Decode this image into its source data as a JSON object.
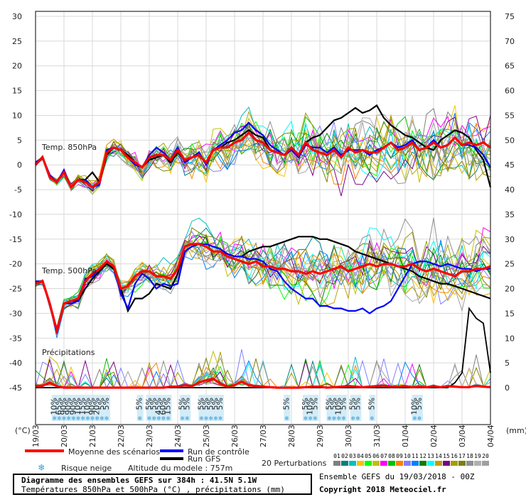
{
  "chart_data": {
    "type": "line",
    "y_left_ticks": [
      "30",
      "25",
      "20",
      "15",
      "10",
      "5",
      "0",
      "-5",
      "-10",
      "-15",
      "-20",
      "-25",
      "-30",
      "-35",
      "-40",
      "-45"
    ],
    "y_right_ticks": [
      "75",
      "70",
      "65",
      "60",
      "55",
      "50",
      "45",
      "40",
      "35",
      "30",
      "25",
      "20",
      "15",
      "10",
      "5",
      "0"
    ],
    "ylim_left": [
      -45,
      30
    ],
    "ylim_right": [
      0,
      75
    ],
    "x_dates": [
      "19/03",
      "20/03",
      "21/03",
      "22/03",
      "23/03",
      "24/03",
      "25/03",
      "26/03",
      "27/03",
      "28/03",
      "29/03",
      "30/03",
      "31/03",
      "01/04",
      "02/04",
      "03/04",
      "04/04"
    ],
    "left_unit": "(°C)",
    "right_unit": "(mm)",
    "panel_labels": {
      "t850": "Temp. 850hPa",
      "t500": "Temp. 500hPa",
      "precip": "Précipitations"
    },
    "step_hours": 6,
    "mean_t850": [
      0.0,
      1.5,
      -2.5,
      -3.5,
      -1.5,
      -4.5,
      -3.0,
      -3.5,
      -4.5,
      -3.5,
      2.5,
      3.5,
      3.0,
      1.5,
      0.5,
      -0.5,
      1.5,
      2.0,
      2.0,
      1.0,
      3.0,
      1.0,
      1.5,
      2.0,
      0.5,
      3.0,
      3.5,
      3.5,
      4.5,
      5.0,
      6.5,
      5.0,
      4.5,
      3.0,
      2.5,
      2.0,
      3.5,
      2.0,
      4.5,
      3.0,
      2.5,
      2.0,
      3.0,
      1.5,
      3.5,
      2.5,
      3.0,
      2.5,
      2.5,
      3.5,
      4.5,
      3.0,
      3.5,
      4.5,
      3.0,
      3.5,
      4.5,
      3.5,
      4.0,
      5.5,
      4.0,
      4.5,
      4.0,
      4.5,
      3.5
    ],
    "mean_t500": [
      -24.0,
      -23.5,
      -28.0,
      -33.5,
      -28.0,
      -27.5,
      -27.0,
      -23.5,
      -22.0,
      -21.0,
      -19.5,
      -20.5,
      -25.0,
      -24.5,
      -22.5,
      -21.5,
      -21.5,
      -22.5,
      -22.5,
      -23.0,
      -21.0,
      -16.5,
      -16.0,
      -16.0,
      -16.5,
      -17.5,
      -17.5,
      -18.5,
      -19.0,
      -19.5,
      -20.0,
      -19.5,
      -20.5,
      -20.5,
      -21.0,
      -21.0,
      -21.5,
      -21.5,
      -22.0,
      -21.5,
      -22.0,
      -21.5,
      -21.0,
      -20.5,
      -21.5,
      -21.0,
      -20.5,
      -20.0,
      -20.5,
      -20.0,
      -20.0,
      -20.5,
      -20.5,
      -20.0,
      -21.0,
      -21.5,
      -21.0,
      -21.5,
      -22.0,
      -22.5,
      -21.5,
      -21.5,
      -21.0,
      -21.0,
      -20.5
    ],
    "mean_precip": [
      0.3,
      0.4,
      1.0,
      0.3,
      0.0,
      0.0,
      0.0,
      0.0,
      0.0,
      0.0,
      0.0,
      0.0,
      0.0,
      0.0,
      0.0,
      0.0,
      0.0,
      0.0,
      0.0,
      0.2,
      0.2,
      0.5,
      0.3,
      1.0,
      1.5,
      1.8,
      0.8,
      0.2,
      0.5,
      1.2,
      0.5,
      0.3,
      0.2,
      0.1,
      0.0,
      0.0,
      0.0,
      0.0,
      0.1,
      0.2,
      0.2,
      0.0,
      0.1,
      0.2,
      0.3,
      0.2,
      0.1,
      0.2,
      0.3,
      0.4,
      0.2,
      0.2,
      0.3,
      0.1,
      0.2,
      0.1,
      0.3,
      0.1,
      0.3,
      0.2,
      0.1,
      0.1,
      0.4,
      0.2,
      0.1
    ],
    "control_t850": [
      0.5,
      1.5,
      -2.0,
      -3.5,
      -1.0,
      -4.5,
      -3.0,
      -3.0,
      -4.5,
      -4.0,
      3.0,
      3.5,
      3.0,
      1.5,
      0.0,
      -0.5,
      2.0,
      3.5,
      2.5,
      1.0,
      3.5,
      0.5,
      1.5,
      2.5,
      0.0,
      3.0,
      4.0,
      5.0,
      6.5,
      7.0,
      8.5,
      7.0,
      6.0,
      4.0,
      3.0,
      2.0,
      3.0,
      1.5,
      4.0,
      3.5,
      3.5,
      2.5,
      3.5,
      2.0,
      3.0,
      3.0,
      3.0,
      2.0,
      3.0,
      3.5,
      4.5,
      3.5,
      4.0,
      5.0,
      3.0,
      3.5,
      5.0,
      3.5,
      4.0,
      5.5,
      4.0,
      4.0,
      3.5,
      2.0,
      -0.5
    ],
    "control_t500": [
      -23.5,
      -23.5,
      -28.0,
      -34.0,
      -28.0,
      -28.0,
      -27.5,
      -23.0,
      -22.5,
      -21.0,
      -19.5,
      -20.5,
      -26.0,
      -29.0,
      -24.0,
      -22.0,
      -23.0,
      -25.0,
      -24.0,
      -24.5,
      -24.0,
      -17.5,
      -16.5,
      -16.0,
      -16.0,
      -16.5,
      -17.0,
      -18.0,
      -18.5,
      -18.5,
      -19.0,
      -19.0,
      -19.5,
      -21.0,
      -21.5,
      -23.5,
      -25.0,
      -26.0,
      -27.0,
      -27.0,
      -28.5,
      -28.5,
      -29.0,
      -29.0,
      -29.5,
      -29.5,
      -29.0,
      -30.0,
      -29.0,
      -28.5,
      -27.5,
      -25.0,
      -22.5,
      -20.0,
      -19.5,
      -19.5,
      -20.0,
      -20.5,
      -20.0,
      -20.5,
      -21.0,
      -21.0,
      -21.5,
      -21.0,
      -21.0
    ],
    "gfs_t850": [
      0.0,
      1.5,
      -2.5,
      -3.5,
      -1.5,
      -4.5,
      -3.0,
      -3.0,
      -1.5,
      -3.5,
      2.0,
      3.5,
      3.0,
      2.0,
      0.5,
      -0.5,
      1.0,
      1.5,
      2.0,
      0.5,
      2.5,
      1.0,
      1.5,
      2.0,
      0.5,
      3.0,
      3.5,
      4.5,
      5.0,
      6.0,
      7.0,
      6.0,
      5.5,
      3.0,
      2.5,
      2.0,
      3.0,
      2.0,
      4.5,
      5.5,
      6.0,
      7.5,
      9.0,
      9.5,
      10.5,
      11.5,
      10.5,
      11.0,
      12.0,
      9.5,
      8.0,
      7.0,
      6.0,
      5.5,
      4.5,
      3.5,
      3.0,
      5.0,
      6.0,
      7.0,
      6.5,
      5.5,
      3.0,
      1.0,
      -4.5
    ],
    "gfs_t500": [
      -24.0,
      -23.5,
      -28.0,
      -33.5,
      -28.0,
      -27.5,
      -27.5,
      -25.0,
      -23.0,
      -21.5,
      -20.0,
      -21.0,
      -25.0,
      -29.5,
      -27.0,
      -27.0,
      -26.0,
      -24.0,
      -24.5,
      -25.0,
      -22.0,
      -16.5,
      -16.0,
      -16.0,
      -16.5,
      -17.5,
      -17.5,
      -18.0,
      -18.5,
      -18.5,
      -17.5,
      -17.0,
      -16.5,
      -16.5,
      -16.0,
      -15.5,
      -15.0,
      -14.5,
      -14.5,
      -14.5,
      -15.0,
      -15.0,
      -15.5,
      -16.0,
      -16.5,
      -17.5,
      -18.0,
      -18.5,
      -19.0,
      -19.5,
      -20.0,
      -20.5,
      -21.0,
      -21.5,
      -22.5,
      -23.0,
      -23.5,
      -24.0,
      -24.0,
      -24.5,
      -25.0,
      -25.5,
      -26.0,
      -26.5,
      -27.0
    ],
    "gfs_precip": [
      0.0,
      0.0,
      0.0,
      0.0,
      0.0,
      0.0,
      0.0,
      0.0,
      0.0,
      0.0,
      0.0,
      0.0,
      0.0,
      0.0,
      0.0,
      0.0,
      0.0,
      0.0,
      0.0,
      0.0,
      0.0,
      0.0,
      0.0,
      0.0,
      0.0,
      0.0,
      0.0,
      0.0,
      0.0,
      0.0,
      0.0,
      0.0,
      0.0,
      0.0,
      0.0,
      0.0,
      0.0,
      0.0,
      0.0,
      0.0,
      0.0,
      0.0,
      0.0,
      0.0,
      0.0,
      0.0,
      0.0,
      0.0,
      0.0,
      0.0,
      0.0,
      0.0,
      0.0,
      0.0,
      0.0,
      0.0,
      0.0,
      0.0,
      0.0,
      1.0,
      3.0,
      16.0,
      14.0,
      13.0,
      3.0
    ],
    "snow_risk_labels": [
      {
        "step": 4,
        "text": "10%"
      },
      {
        "step": 5,
        "text": "65%"
      },
      {
        "step": 6,
        "text": "90%"
      },
      {
        "step": 7,
        "text": "90%"
      },
      {
        "step": 8,
        "text": "90%"
      },
      {
        "step": 9,
        "text": "10%"
      },
      {
        "step": 10,
        "text": "15%"
      },
      {
        "step": 11,
        "text": "10%"
      },
      {
        "step": 12,
        "text": "90%"
      },
      {
        "step": 13,
        "text": "20%"
      },
      {
        "step": 14,
        "text": "5%"
      },
      {
        "step": 15,
        "text": "5%"
      },
      {
        "step": 22,
        "text": "5%"
      },
      {
        "step": 24,
        "text": "5%"
      },
      {
        "step": 25,
        "text": "5%"
      },
      {
        "step": 26,
        "text": "45%"
      },
      {
        "step": 27,
        "text": "60%"
      },
      {
        "step": 28,
        "text": "15%"
      },
      {
        "step": 31,
        "text": "5%"
      },
      {
        "step": 32,
        "text": "5%"
      },
      {
        "step": 35,
        "text": "5%"
      },
      {
        "step": 36,
        "text": "5%"
      },
      {
        "step": 37,
        "text": "5%"
      },
      {
        "step": 38,
        "text": "5%"
      },
      {
        "step": 39,
        "text": "5%"
      },
      {
        "step": 53,
        "text": "5%"
      },
      {
        "step": 57,
        "text": "5%"
      },
      {
        "step": 58,
        "text": "10%"
      },
      {
        "step": 59,
        "text": "5%"
      },
      {
        "step": 62,
        "text": "5%"
      },
      {
        "step": 63,
        "text": "5%"
      },
      {
        "step": 64,
        "text": "10%"
      },
      {
        "step": 65,
        "text": "5%"
      },
      {
        "step": 67,
        "text": "5%"
      },
      {
        "step": 68,
        "text": "5%"
      },
      {
        "step": 71,
        "text": "5%"
      },
      {
        "step": 80,
        "text": "10%"
      },
      {
        "step": 81,
        "text": "5%"
      }
    ],
    "colors": {
      "mean": "#ff0000",
      "control": "#0000ff",
      "gfs": "#000000",
      "grid": "#d8d8d8"
    }
  },
  "legend": {
    "mean": "Moyenne des scénarios",
    "control": "Run de contrôle",
    "gfs": "Run GFS",
    "snow": "Risque neige",
    "altitude": "Altitude du modele : 757m",
    "perturbations": "20 Perturbations",
    "pert_numbers": [
      "01",
      "02",
      "03",
      "04",
      "05",
      "06",
      "07",
      "08",
      "09",
      "10",
      "11",
      "12",
      "13",
      "14",
      "15",
      "16",
      "17",
      "18",
      "19",
      "20"
    ],
    "pert_colors": [
      "#808080",
      "#008080",
      "#00c0c0",
      "#ffc000",
      "#00ff00",
      "#c0c000",
      "#ff00ff",
      "#00c000",
      "#ff8000",
      "#8080ff",
      "#0080ff",
      "#008000",
      "#00ffff",
      "#c0a000",
      "#800080",
      "#a0a000",
      "#808000",
      "#909090",
      "#b0b0b0",
      "#a0a0a0"
    ]
  },
  "footer": {
    "title": "Diagramme des ensembles GEFS sur 384h : 41.5N 5.1W",
    "subtitle": "Températures 850hPa et 500hPa (°C) , précipitations (mm)",
    "run_info": "Ensemble GEFS du 19/03/2018 - 00Z",
    "copyright": "Copyright 2018 Meteociel.fr"
  }
}
